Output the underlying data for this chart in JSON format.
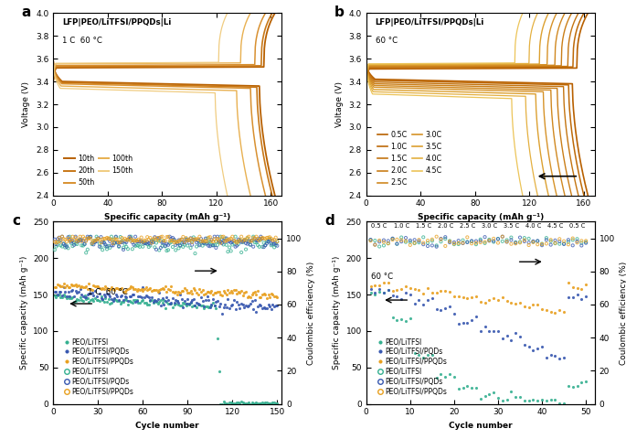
{
  "panel_a": {
    "title": "LFP|PEO/LiTFSI/PPQDs|Li",
    "subtitle": "1 C  60 °C",
    "xlabel": "Specific capacity (mAh g⁻¹)",
    "ylabel": "Voltage (V)",
    "xlim": [
      0,
      168
    ],
    "ylim": [
      2.4,
      4.0
    ],
    "xticks": [
      0,
      40,
      80,
      120,
      160
    ],
    "yticks": [
      2.4,
      2.6,
      2.8,
      3.0,
      3.2,
      3.4,
      3.6,
      3.8,
      4.0
    ],
    "curves": [
      {
        "label": "10th",
        "color": "#b86000",
        "cap": 163,
        "c_plat": 3.52,
        "d_plat": 3.38,
        "lw": 1.3
      },
      {
        "label": "20th",
        "color": "#c87818",
        "cap": 161,
        "c_plat": 3.53,
        "d_plat": 3.37,
        "lw": 1.2
      },
      {
        "label": "50th",
        "color": "#d89030",
        "cap": 156,
        "c_plat": 3.54,
        "d_plat": 3.36,
        "lw": 1.1
      },
      {
        "label": "100th",
        "color": "#e8b050",
        "cap": 145,
        "c_plat": 3.555,
        "d_plat": 3.34,
        "lw": 1.0
      },
      {
        "label": "150th",
        "color": "#f0cc80",
        "cap": 128,
        "c_plat": 3.56,
        "d_plat": 3.32,
        "lw": 0.9
      }
    ]
  },
  "panel_b": {
    "title": "LFP|PEO/LiTFSI/PPQDs|Li",
    "subtitle": "60 °C",
    "xlabel": "Specific capacity (mAh g⁻¹)",
    "ylabel": "Voltage (V)",
    "xlim": [
      0,
      168
    ],
    "ylim": [
      2.4,
      4.0
    ],
    "xticks": [
      0,
      40,
      80,
      120,
      160
    ],
    "yticks": [
      2.4,
      2.6,
      2.8,
      3.0,
      3.2,
      3.4,
      3.6,
      3.8,
      4.0
    ],
    "rates": [
      {
        "label": "0.5C",
        "color": "#b86000",
        "cap": 163,
        "c_plat": 3.51,
        "d_plat": 3.4,
        "lw": 1.2
      },
      {
        "label": "1.0C",
        "color": "#be6a08",
        "cap": 160,
        "c_plat": 3.52,
        "d_plat": 3.39,
        "lw": 1.1
      },
      {
        "label": "1.5C",
        "color": "#c47410",
        "cap": 156,
        "c_plat": 3.525,
        "d_plat": 3.375,
        "lw": 1.0
      },
      {
        "label": "2.0C",
        "color": "#ca7e18",
        "cap": 151,
        "c_plat": 3.53,
        "d_plat": 3.36,
        "lw": 1.0
      },
      {
        "label": "2.5C",
        "color": "#d08820",
        "cap": 146,
        "c_plat": 3.535,
        "d_plat": 3.345,
        "lw": 1.0
      },
      {
        "label": "3.0C",
        "color": "#d69228",
        "cap": 140,
        "c_plat": 3.54,
        "d_plat": 3.33,
        "lw": 1.0
      },
      {
        "label": "3.5C",
        "color": "#dca030",
        "cap": 134,
        "c_plat": 3.545,
        "d_plat": 3.31,
        "lw": 1.0
      },
      {
        "label": "4.0C",
        "color": "#e4b040",
        "cap": 126,
        "c_plat": 3.55,
        "d_plat": 3.29,
        "lw": 0.9
      },
      {
        "label": "4.5C",
        "color": "#ecc458",
        "cap": 115,
        "c_plat": 3.555,
        "d_plat": 3.27,
        "lw": 0.9
      }
    ]
  },
  "panel_c": {
    "xlabel": "Cycle number",
    "ylabel_left": "Specific capacity (mAh g⁻¹)",
    "ylabel_right": "Coulombic efficiency (%)",
    "subtitle": "1 C  60 °C",
    "xlim": [
      0,
      153
    ],
    "ylim_left": [
      0,
      250
    ],
    "ylim_right": [
      0,
      110
    ],
    "xticks": [
      0,
      30,
      60,
      90,
      120,
      150
    ],
    "yticks_left": [
      0,
      50,
      100,
      150,
      200,
      250
    ],
    "yticks_right": [
      0,
      20,
      40,
      60,
      80,
      100
    ],
    "teal_color": "#35b090",
    "blue_color": "#3858b0",
    "orange_color": "#e8a020"
  },
  "panel_d": {
    "xlabel": "Cycle number",
    "ylabel_left": "Specific capacity (mAh g⁻¹)",
    "ylabel_right": "Coulombic efficiency (%)",
    "subtitle": "60 °C",
    "xlim": [
      0,
      52
    ],
    "ylim_left": [
      0,
      250
    ],
    "ylim_right": [
      0,
      110
    ],
    "xticks": [
      0,
      10,
      20,
      30,
      40,
      50
    ],
    "yticks_left": [
      0,
      50,
      100,
      150,
      200,
      250
    ],
    "yticks_right": [
      0,
      20,
      40,
      60,
      80,
      100
    ],
    "teal_color": "#35b090",
    "blue_color": "#3858b0",
    "orange_color": "#e8a020",
    "rate_labels": [
      "0.5 C",
      "1.0 C",
      "1.5 C",
      "2.0 C",
      "2.5 C",
      "3.0 C",
      "3.5 C",
      "4.0 C",
      "4.5 C",
      "0.5 C"
    ],
    "rate_x": [
      1,
      6,
      11,
      16,
      21,
      26,
      31,
      36,
      41,
      46
    ]
  }
}
